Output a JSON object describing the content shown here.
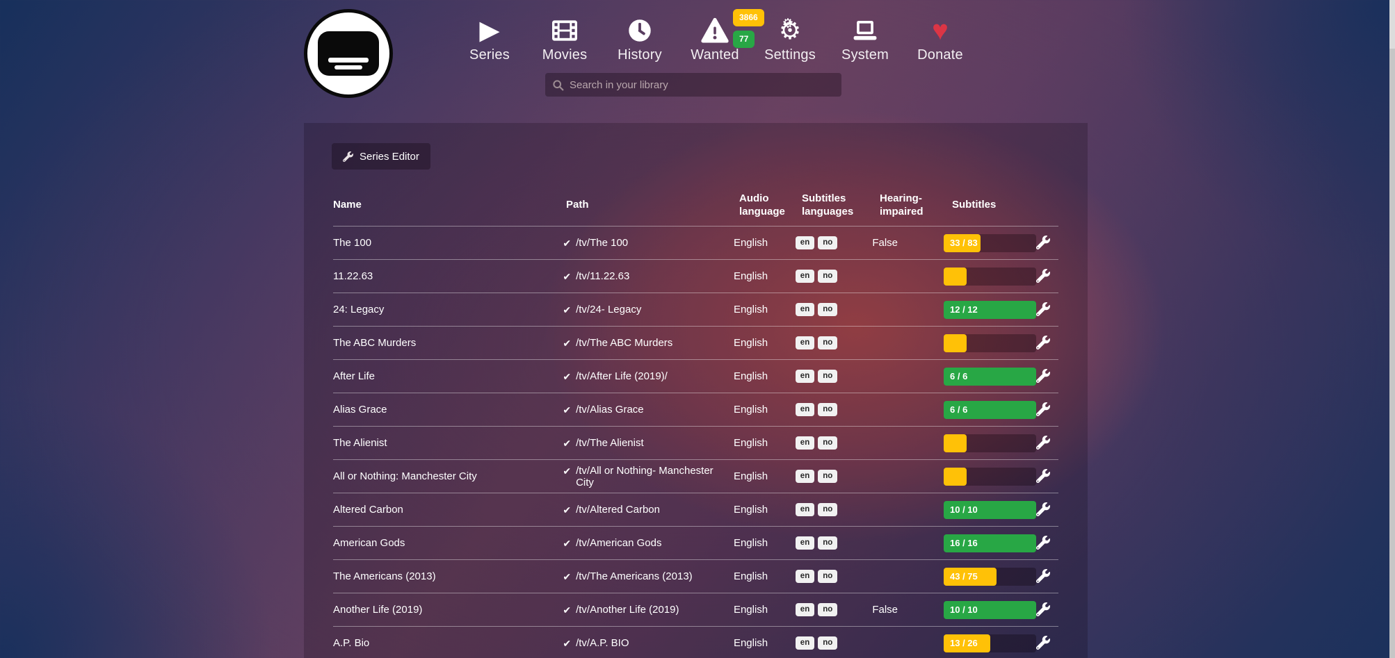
{
  "nav": {
    "items": [
      {
        "label": "Series",
        "icon": "play-icon"
      },
      {
        "label": "Movies",
        "icon": "film-icon"
      },
      {
        "label": "History",
        "icon": "clock-icon"
      },
      {
        "label": "Wanted",
        "icon": "warning-triangle-icon",
        "badges": [
          {
            "value": "3866",
            "color": "#ffc107"
          },
          {
            "value": "77",
            "color": "#28a745"
          }
        ]
      },
      {
        "label": "Settings",
        "icon": "gears-icon"
      },
      {
        "label": "System",
        "icon": "laptop-icon"
      },
      {
        "label": "Donate",
        "icon": "heart-icon",
        "icon_color": "#dc3545"
      }
    ]
  },
  "search": {
    "placeholder": "Search in your library"
  },
  "toolbar": {
    "series_editor_label": "Series Editor"
  },
  "table": {
    "headers": {
      "name": "Name",
      "path": "Path",
      "audio": "Audio language",
      "subtitles_languages": "Subtitles languages",
      "hearing_impaired": "Hearing-impaired",
      "subtitles": "Subtitles"
    },
    "rows": [
      {
        "name": "The 100",
        "path": "/tv/The 100",
        "audio": "English",
        "langs": [
          "en",
          "no"
        ],
        "hearing_impaired": "False",
        "progress": {
          "label": "33 / 83",
          "pct": 40,
          "state": "warning"
        }
      },
      {
        "name": "11.22.63",
        "path": "/tv/11.22.63",
        "audio": "English",
        "langs": [
          "en",
          "no"
        ],
        "hearing_impaired": "",
        "progress": {
          "label": "",
          "pct": 25,
          "state": "warning"
        }
      },
      {
        "name": "24: Legacy",
        "path": "/tv/24- Legacy",
        "audio": "English",
        "langs": [
          "en",
          "no"
        ],
        "hearing_impaired": "",
        "progress": {
          "label": "12 / 12",
          "pct": 100,
          "state": "success"
        }
      },
      {
        "name": "The ABC Murders",
        "path": "/tv/The ABC Murders",
        "audio": "English",
        "langs": [
          "en",
          "no"
        ],
        "hearing_impaired": "",
        "progress": {
          "label": "",
          "pct": 25,
          "state": "warning"
        }
      },
      {
        "name": "After Life",
        "path": "/tv/After Life (2019)/",
        "audio": "English",
        "langs": [
          "en",
          "no"
        ],
        "hearing_impaired": "",
        "progress": {
          "label": "6 / 6",
          "pct": 100,
          "state": "success"
        }
      },
      {
        "name": "Alias Grace",
        "path": "/tv/Alias Grace",
        "audio": "English",
        "langs": [
          "en",
          "no"
        ],
        "hearing_impaired": "",
        "progress": {
          "label": "6 / 6",
          "pct": 100,
          "state": "success"
        }
      },
      {
        "name": "The Alienist",
        "path": "/tv/The Alienist",
        "audio": "English",
        "langs": [
          "en",
          "no"
        ],
        "hearing_impaired": "",
        "progress": {
          "label": "",
          "pct": 25,
          "state": "warning"
        }
      },
      {
        "name": "All or Nothing: Manchester City",
        "path": "/tv/All or Nothing- Manchester City",
        "audio": "English",
        "langs": [
          "en",
          "no"
        ],
        "hearing_impaired": "",
        "progress": {
          "label": "",
          "pct": 25,
          "state": "warning"
        }
      },
      {
        "name": "Altered Carbon",
        "path": "/tv/Altered Carbon",
        "audio": "English",
        "langs": [
          "en",
          "no"
        ],
        "hearing_impaired": "",
        "progress": {
          "label": "10 / 10",
          "pct": 100,
          "state": "success"
        }
      },
      {
        "name": "American Gods",
        "path": "/tv/American Gods",
        "audio": "English",
        "langs": [
          "en",
          "no"
        ],
        "hearing_impaired": "",
        "progress": {
          "label": "16 / 16",
          "pct": 100,
          "state": "success"
        }
      },
      {
        "name": "The Americans (2013)",
        "path": "/tv/The Americans (2013)",
        "audio": "English",
        "langs": [
          "en",
          "no"
        ],
        "hearing_impaired": "",
        "progress": {
          "label": "43 / 75",
          "pct": 57,
          "state": "warning"
        }
      },
      {
        "name": "Another Life (2019)",
        "path": "/tv/Another Life (2019)",
        "audio": "English",
        "langs": [
          "en",
          "no"
        ],
        "hearing_impaired": "False",
        "progress": {
          "label": "10 / 10",
          "pct": 100,
          "state": "success"
        }
      },
      {
        "name": "A.P. Bio",
        "path": "/tv/A.P. BIO",
        "audio": "English",
        "langs": [
          "en",
          "no"
        ],
        "hearing_impaired": "",
        "progress": {
          "label": "13 / 26",
          "pct": 50,
          "state": "warning"
        }
      }
    ]
  },
  "colors": {
    "warning": "#ffc107",
    "success": "#28a745",
    "heart": "#dc3545",
    "nav_text": "#ffffff"
  }
}
